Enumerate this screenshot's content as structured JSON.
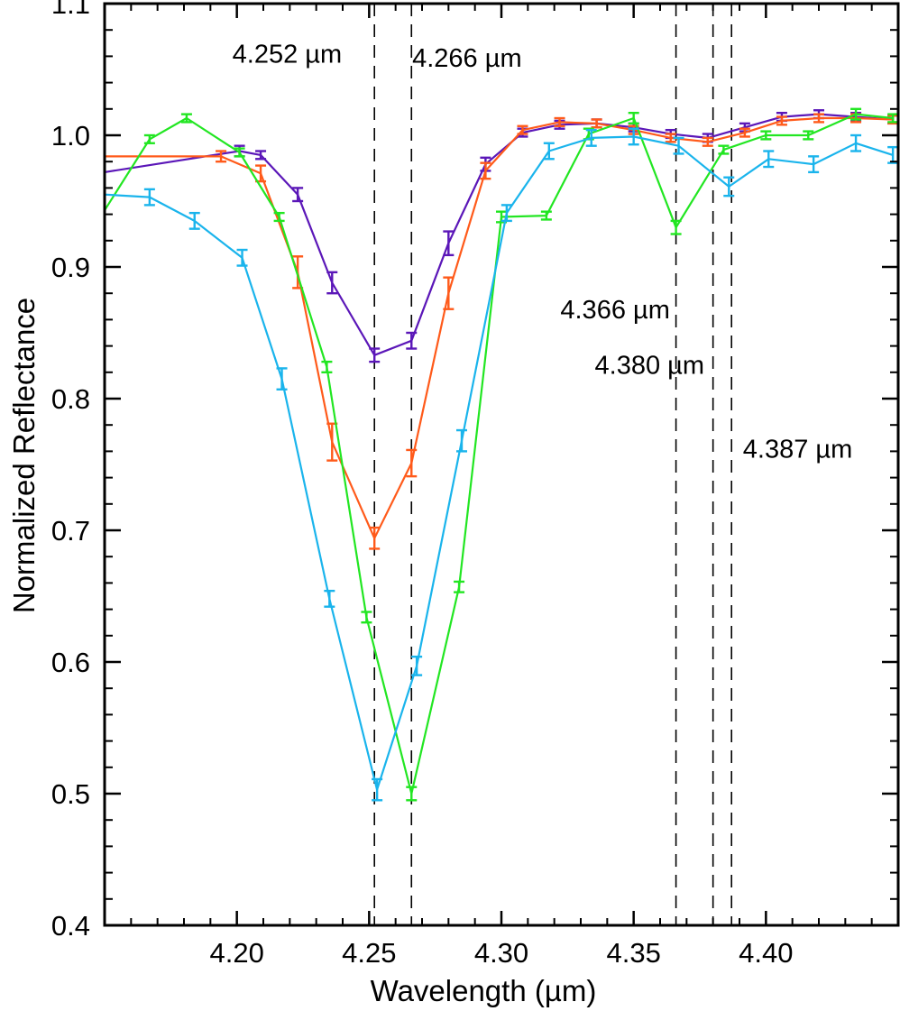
{
  "chart_data": {
    "type": "line",
    "title": "",
    "xlabel": "Wavelength (µm)",
    "ylabel": "Normalized Reflectance",
    "xlim": [
      4.15,
      4.45
    ],
    "ylim": [
      0.4,
      1.1
    ],
    "xticks": [
      {
        "value": 4.2,
        "label": "4.20"
      },
      {
        "value": 4.25,
        "label": "4.25"
      },
      {
        "value": 4.3,
        "label": "4.30"
      },
      {
        "value": 4.35,
        "label": "4.35"
      },
      {
        "value": 4.4,
        "label": "4.40"
      }
    ],
    "yticks": [
      {
        "value": 0.4,
        "label": "0.4"
      },
      {
        "value": 0.5,
        "label": "0.5"
      },
      {
        "value": 0.6,
        "label": "0.6"
      },
      {
        "value": 0.7,
        "label": "0.7"
      },
      {
        "value": 0.8,
        "label": "0.8"
      },
      {
        "value": 0.9,
        "label": "0.9"
      },
      {
        "value": 1.0,
        "label": "1.0"
      },
      {
        "value": 1.1,
        "label": "1.1"
      }
    ],
    "grid": false,
    "reference_lines": [
      {
        "x": 4.252,
        "label": "4.252 µm",
        "label_pos": [
          4.219,
          1.055
        ]
      },
      {
        "x": 4.266,
        "label": "4.266 µm",
        "label_pos": [
          4.287,
          1.052
        ]
      },
      {
        "x": 4.366,
        "label": "4.366 µm",
        "label_pos": [
          4.343,
          0.861
        ]
      },
      {
        "x": 4.38,
        "label": "4.380 µm",
        "label_pos": [
          4.356,
          0.819
        ]
      },
      {
        "x": 4.387,
        "label": "4.387 µm",
        "label_pos": [
          4.412,
          0.755
        ]
      }
    ],
    "series": [
      {
        "color": "#5b17b8",
        "x": [
          4.15,
          4.201,
          4.209,
          4.223,
          4.236,
          4.252,
          4.266,
          4.28,
          4.294,
          4.308,
          4.322,
          4.336,
          4.35,
          4.364,
          4.378,
          4.392,
          4.406,
          4.42,
          4.434,
          4.448
        ],
        "y": [
          0.972,
          0.988,
          0.985,
          0.955,
          0.888,
          0.833,
          0.844,
          0.918,
          0.978,
          1.002,
          1.008,
          1.009,
          1.006,
          1.001,
          0.998,
          1.006,
          1.014,
          1.016,
          1.014,
          1.012
        ],
        "err": [
          0,
          0.004,
          0.003,
          0.005,
          0.008,
          0.005,
          0.006,
          0.009,
          0.005,
          0.003,
          0.003,
          0.003,
          0.003,
          0.003,
          0.003,
          0.003,
          0.003,
          0.003,
          0.003,
          0.003
        ]
      },
      {
        "color": "#ff5a1a",
        "x": [
          4.15,
          4.194,
          4.209,
          4.223,
          4.236,
          4.252,
          4.266,
          4.28,
          4.294,
          4.308,
          4.322,
          4.336,
          4.35,
          4.364,
          4.378,
          4.392,
          4.406,
          4.42,
          4.434,
          4.448
        ],
        "y": [
          0.984,
          0.984,
          0.971,
          0.896,
          0.767,
          0.694,
          0.751,
          0.88,
          0.973,
          1.004,
          1.01,
          1.009,
          1.004,
          0.998,
          0.995,
          1.002,
          1.011,
          1.013,
          1.013,
          1.012
        ],
        "err": [
          0,
          0.004,
          0.006,
          0.012,
          0.014,
          0.008,
          0.01,
          0.012,
          0.006,
          0.003,
          0.003,
          0.003,
          0.003,
          0.003,
          0.003,
          0.003,
          0.003,
          0.003,
          0.003,
          0.003
        ]
      },
      {
        "color": "#22e622",
        "x": [
          4.15,
          4.167,
          4.181,
          4.201,
          4.216,
          4.234,
          4.249,
          4.266,
          4.284,
          4.3,
          4.317,
          4.333,
          4.35,
          4.366,
          4.384,
          4.4,
          4.416,
          4.434,
          4.448
        ],
        "y": [
          0.943,
          0.997,
          1.013,
          0.987,
          0.938,
          0.824,
          0.634,
          0.5,
          0.657,
          0.938,
          0.939,
          1.001,
          1.013,
          0.93,
          0.989,
          1.0,
          1.0,
          1.016,
          1.013
        ],
        "err": [
          0,
          0.003,
          0.003,
          0.003,
          0.003,
          0.004,
          0.004,
          0.005,
          0.004,
          0.004,
          0.003,
          0.004,
          0.004,
          0.005,
          0.003,
          0.003,
          0.003,
          0.004,
          0.003
        ]
      },
      {
        "color": "#1ab4ec",
        "x": [
          4.15,
          4.167,
          4.184,
          4.202,
          4.217,
          4.235,
          4.253,
          4.268,
          4.285,
          4.302,
          4.318,
          4.334,
          4.35,
          4.367,
          4.386,
          4.401,
          4.418,
          4.434,
          4.448
        ],
        "y": [
          0.955,
          0.953,
          0.935,
          0.907,
          0.815,
          0.648,
          0.503,
          0.597,
          0.768,
          0.941,
          0.988,
          0.998,
          0.999,
          0.992,
          0.961,
          0.982,
          0.978,
          0.994,
          0.985
        ],
        "err": [
          0,
          0.006,
          0.006,
          0.006,
          0.008,
          0.006,
          0.008,
          0.007,
          0.008,
          0.006,
          0.006,
          0.006,
          0.006,
          0.006,
          0.007,
          0.006,
          0.006,
          0.006,
          0.006
        ]
      }
    ]
  }
}
